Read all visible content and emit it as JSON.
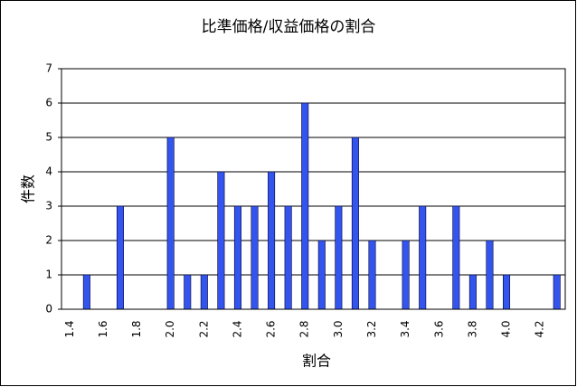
{
  "chart_data": {
    "type": "bar",
    "title": "比準価格/収益価格の割合",
    "x_label": "割合",
    "y_label": "件数",
    "categories": [
      "1.4",
      null,
      "1.6",
      null,
      "1.8",
      null,
      "2.0",
      null,
      "2.2",
      null,
      "2.4",
      null,
      "2.6",
      null,
      "2.8",
      null,
      "3.0",
      null,
      "3.2",
      null,
      "3.4",
      null,
      "3.6",
      null,
      "3.8",
      null,
      "4.0",
      null,
      "4.2",
      null
    ],
    "values": [
      0,
      1,
      0,
      3,
      0,
      0,
      5,
      1,
      1,
      4,
      3,
      3,
      4,
      3,
      6,
      2,
      3,
      5,
      2,
      0,
      2,
      3,
      0,
      3,
      1,
      2,
      1,
      0,
      0,
      1
    ],
    "color": "#3355ee",
    "ylim": [
      0,
      7
    ],
    "yticks": [
      0,
      1,
      2,
      3,
      4,
      5,
      6,
      7
    ],
    "grid": true
  }
}
